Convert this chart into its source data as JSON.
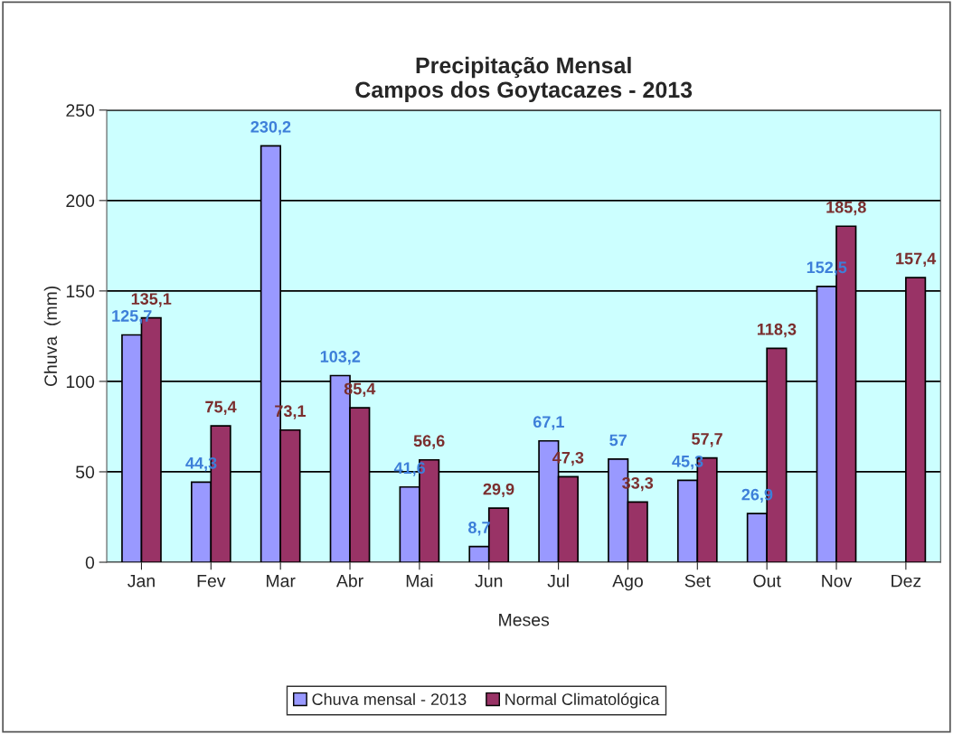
{
  "chart_data": {
    "type": "bar",
    "title": "Precipitação Mensal\nCampos dos Goytacazes - 2013",
    "xlabel": "Meses",
    "ylabel": "Chuva  (mm)",
    "categories": [
      "Jan",
      "Fev",
      "Mar",
      "Abr",
      "Mai",
      "Jun",
      "Jul",
      "Ago",
      "Set",
      "Out",
      "Nov",
      "Dez"
    ],
    "series": [
      {
        "name": "Chuva mensal - 2013",
        "color": "#9999ff",
        "values": [
          125.7,
          44.3,
          230.2,
          103.2,
          41.6,
          8.7,
          67.1,
          57,
          45.3,
          26.9,
          152.5,
          null
        ],
        "value_labels": [
          "125,7",
          "44,3",
          "230,2",
          "103,2",
          "41,6",
          "8,7",
          "67,1",
          "57",
          "45,3",
          "26,9",
          "152,5",
          null
        ]
      },
      {
        "name": "Normal Climatológica",
        "color": "#993366",
        "values": [
          135.1,
          75.4,
          73.1,
          85.4,
          56.6,
          29.9,
          47.3,
          33.3,
          57.7,
          118.3,
          185.8,
          157.4
        ],
        "value_labels": [
          "135,1",
          "75,4",
          "73,1",
          "85,4",
          "56,6",
          "29,9",
          "47,3",
          "33,3",
          "57,7",
          "118,3",
          "185,8",
          "157,4"
        ]
      }
    ],
    "ylim": [
      0,
      250
    ],
    "yticks": [
      0,
      50,
      100,
      150,
      200,
      250
    ],
    "grid": "y",
    "legend": "bottom"
  }
}
